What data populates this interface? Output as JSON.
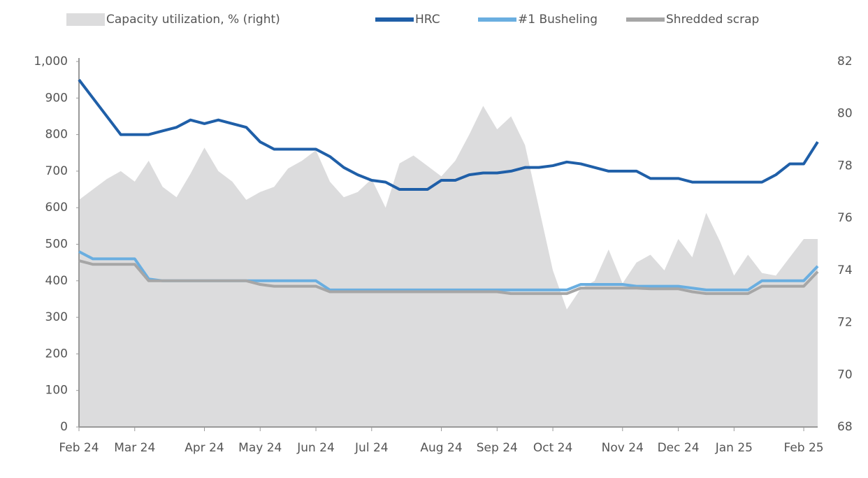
{
  "chart_data": {
    "type": "line",
    "categories": [
      "Feb 24",
      null,
      null,
      null,
      "Mar 24",
      null,
      null,
      null,
      null,
      "Apr 24",
      null,
      null,
      null,
      "May 24",
      null,
      null,
      null,
      "Jun 24",
      null,
      null,
      null,
      "Jul 24",
      null,
      null,
      null,
      null,
      "Aug 24",
      null,
      null,
      null,
      "Sep 24",
      null,
      null,
      null,
      "Oct 24",
      null,
      null,
      null,
      null,
      "Nov 24",
      null,
      null,
      null,
      "Dec 24",
      null,
      null,
      null,
      "Jan 25",
      null,
      null,
      null,
      null,
      "Feb 25",
      null
    ],
    "ylim": [
      0,
      1000
    ],
    "yticks": [
      0,
      100,
      200,
      300,
      400,
      500,
      600,
      700,
      800,
      900,
      {
        "value": 1000,
        "label": "1,000"
      }
    ],
    "y2lim": [
      68,
      82
    ],
    "y2ticks": [
      68,
      70,
      72,
      74,
      76,
      78,
      80,
      82
    ],
    "series": [
      {
        "name": "Capacity utilization, % (right)",
        "kind": "area",
        "axis": "y2",
        "color": "#dcdcdd",
        "values": [
          76.7,
          77.1,
          77.5,
          77.8,
          77.4,
          78.2,
          77.2,
          76.8,
          77.7,
          78.7,
          77.8,
          77.4,
          76.7,
          77.0,
          77.2,
          77.9,
          78.2,
          78.6,
          77.4,
          76.8,
          77.0,
          77.5,
          76.4,
          78.1,
          78.4,
          78.0,
          77.6,
          78.2,
          79.2,
          80.3,
          79.4,
          79.9,
          78.8,
          76.4,
          74.0,
          72.5,
          73.3,
          73.6,
          74.8,
          73.5,
          74.3,
          74.6,
          74.0,
          75.2,
          74.5,
          76.2,
          75.1,
          73.8,
          74.6,
          73.9,
          73.8,
          74.5,
          75.2,
          75.2
        ]
      },
      {
        "name": "HRC",
        "color": "#1f5fa8",
        "values": [
          950,
          900,
          850,
          800,
          800,
          800,
          810,
          820,
          840,
          830,
          840,
          830,
          820,
          780,
          760,
          760,
          760,
          760,
          740,
          710,
          690,
          675,
          670,
          650,
          650,
          650,
          675,
          675,
          690,
          695,
          695,
          700,
          710,
          710,
          715,
          725,
          720,
          710,
          700,
          700,
          700,
          680,
          680,
          680,
          670,
          670,
          670,
          670,
          670,
          670,
          690,
          720,
          720,
          780
        ]
      },
      {
        "name": "#1 Busheling",
        "color": "#6aaee0",
        "values": [
          480,
          460,
          460,
          460,
          460,
          405,
          400,
          400,
          400,
          400,
          400,
          400,
          400,
          400,
          400,
          400,
          400,
          400,
          375,
          375,
          375,
          375,
          375,
          375,
          375,
          375,
          375,
          375,
          375,
          375,
          375,
          375,
          375,
          375,
          375,
          375,
          390,
          390,
          390,
          390,
          385,
          385,
          385,
          385,
          380,
          375,
          375,
          375,
          375,
          400,
          400,
          400,
          400,
          440
        ]
      },
      {
        "name": "Shredded scrap",
        "color": "#a6a6a6",
        "values": [
          455,
          445,
          445,
          445,
          445,
          400,
          400,
          400,
          400,
          400,
          400,
          400,
          400,
          390,
          385,
          385,
          385,
          385,
          370,
          370,
          370,
          370,
          370,
          370,
          370,
          370,
          370,
          370,
          370,
          370,
          370,
          365,
          365,
          365,
          365,
          365,
          380,
          380,
          380,
          380,
          380,
          378,
          378,
          378,
          370,
          365,
          365,
          365,
          365,
          385,
          385,
          385,
          385,
          425
        ]
      }
    ]
  }
}
